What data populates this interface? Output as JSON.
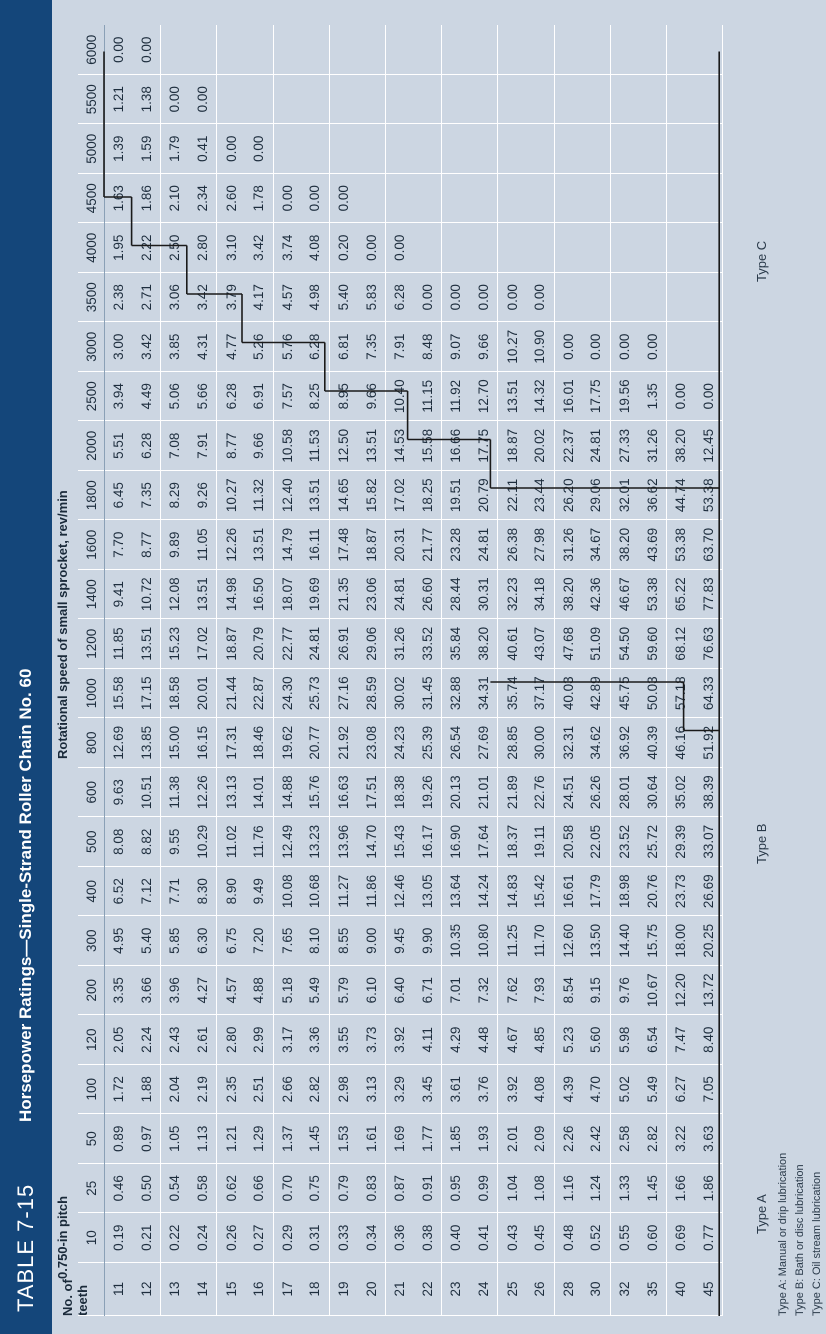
{
  "table": {
    "number": "TABLE 7-15",
    "title": "Horsepower Ratings—Single-Strand Roller Chain No. 60",
    "pitch_label": "0.750-in pitch",
    "teeth_header": [
      "No. of",
      "teeth"
    ],
    "speed_header": "Rotational speed of small sprocket, rev/min",
    "speeds": [
      "10",
      "25",
      "50",
      "100",
      "120",
      "200",
      "300",
      "400",
      "500",
      "600",
      "800",
      "1000",
      "1200",
      "1400",
      "1600",
      "1800",
      "2000",
      "2500",
      "3000",
      "3500",
      "4000",
      "4500",
      "5000",
      "5500",
      "6000"
    ],
    "rows": [
      {
        "teeth": "11",
        "v": [
          "0.19",
          "0.46",
          "0.89",
          "1.72",
          "2.05",
          "3.35",
          "4.95",
          "6.52",
          "8.08",
          "9.63",
          "12.69",
          "15.58",
          "11.85",
          "9.41",
          "7.70",
          "6.45",
          "5.51",
          "3.94",
          "3.00",
          "2.38",
          "1.95",
          "1.63",
          "1.39",
          "1.21",
          "0.00"
        ]
      },
      {
        "teeth": "12",
        "v": [
          "0.21",
          "0.50",
          "0.97",
          "1.88",
          "2.24",
          "3.66",
          "5.40",
          "7.12",
          "8.82",
          "10.51",
          "13.85",
          "17.15",
          "13.51",
          "10.72",
          "8.77",
          "7.35",
          "6.28",
          "4.49",
          "3.42",
          "2.71",
          "2.22",
          "1.86",
          "1.59",
          "1.38",
          "0.00"
        ]
      },
      {
        "teeth": "13",
        "v": [
          "0.22",
          "0.54",
          "1.05",
          "2.04",
          "2.43",
          "3.96",
          "5.85",
          "7.71",
          "9.55",
          "11.38",
          "15.00",
          "18.58",
          "15.23",
          "12.08",
          "9.89",
          "8.29",
          "7.08",
          "5.06",
          "3.85",
          "3.06",
          "2.50",
          "2.10",
          "1.79",
          "0.00",
          ""
        ]
      },
      {
        "teeth": "14",
        "v": [
          "0.24",
          "0.58",
          "1.13",
          "2.19",
          "2.61",
          "4.27",
          "6.30",
          "8.30",
          "10.29",
          "12.26",
          "16.15",
          "20.01",
          "17.02",
          "13.51",
          "11.05",
          "9.26",
          "7.91",
          "5.66",
          "4.31",
          "3.42",
          "2.80",
          "2.34",
          "0.41",
          "0.00",
          ""
        ]
      },
      {
        "teeth": "15",
        "v": [
          "0.26",
          "0.62",
          "1.21",
          "2.35",
          "2.80",
          "4.57",
          "6.75",
          "8.90",
          "11.02",
          "13.13",
          "17.31",
          "21.44",
          "18.87",
          "14.98",
          "12.26",
          "10.27",
          "8.77",
          "6.28",
          "4.77",
          "3.79",
          "3.10",
          "2.60",
          "0.00",
          "",
          ""
        ]
      },
      {
        "teeth": "16",
        "v": [
          "0.27",
          "0.66",
          "1.29",
          "2.51",
          "2.99",
          "4.88",
          "7.20",
          "9.49",
          "11.76",
          "14.01",
          "18.46",
          "22.87",
          "20.79",
          "16.50",
          "13.51",
          "11.32",
          "9.66",
          "6.91",
          "5.26",
          "4.17",
          "3.42",
          "1.78",
          "0.00",
          "",
          ""
        ]
      },
      {
        "teeth": "17",
        "v": [
          "0.29",
          "0.70",
          "1.37",
          "2.66",
          "3.17",
          "5.18",
          "7.65",
          "10.08",
          "12.49",
          "14.88",
          "19.62",
          "24.30",
          "22.77",
          "18.07",
          "14.79",
          "12.40",
          "10.58",
          "7.57",
          "5.76",
          "4.57",
          "3.74",
          "0.00",
          "",
          "",
          ""
        ]
      },
      {
        "teeth": "18",
        "v": [
          "0.31",
          "0.75",
          "1.45",
          "2.82",
          "3.36",
          "5.49",
          "8.10",
          "10.68",
          "13.23",
          "15.76",
          "20.77",
          "25.73",
          "24.81",
          "19.69",
          "16.11",
          "13.51",
          "11.53",
          "8.25",
          "6.28",
          "4.98",
          "4.08",
          "0.00",
          "",
          "",
          ""
        ]
      },
      {
        "teeth": "19",
        "v": [
          "0.33",
          "0.79",
          "1.53",
          "2.98",
          "3.55",
          "5.79",
          "8.55",
          "11.27",
          "13.96",
          "16.63",
          "21.92",
          "27.16",
          "26.91",
          "21.35",
          "17.48",
          "14.65",
          "12.50",
          "8.95",
          "6.81",
          "5.40",
          "0.20",
          "0.00",
          "",
          "",
          ""
        ]
      },
      {
        "teeth": "20",
        "v": [
          "0.34",
          "0.83",
          "1.61",
          "3.13",
          "3.73",
          "6.10",
          "9.00",
          "11.86",
          "14.70",
          "17.51",
          "23.08",
          "28.59",
          "29.06",
          "23.06",
          "18.87",
          "15.82",
          "13.51",
          "9.66",
          "7.35",
          "5.83",
          "0.00",
          "",
          "",
          "",
          ""
        ]
      },
      {
        "teeth": "21",
        "v": [
          "0.36",
          "0.87",
          "1.69",
          "3.29",
          "3.92",
          "6.40",
          "9.45",
          "12.46",
          "15.43",
          "18.38",
          "24.23",
          "30.02",
          "31.26",
          "24.81",
          "20.31",
          "17.02",
          "14.53",
          "10.40",
          "7.91",
          "6.28",
          "0.00",
          "",
          "",
          "",
          ""
        ]
      },
      {
        "teeth": "22",
        "v": [
          "0.38",
          "0.91",
          "1.77",
          "3.45",
          "4.11",
          "6.71",
          "9.90",
          "13.05",
          "16.17",
          "19.26",
          "25.39",
          "31.45",
          "33.52",
          "26.60",
          "21.77",
          "18.25",
          "15.58",
          "11.15",
          "8.48",
          "0.00",
          "",
          "",
          "",
          "",
          ""
        ]
      },
      {
        "teeth": "23",
        "v": [
          "0.40",
          "0.95",
          "1.85",
          "3.61",
          "4.29",
          "7.01",
          "10.35",
          "13.64",
          "16.90",
          "20.13",
          "26.54",
          "32.88",
          "35.84",
          "28.44",
          "23.28",
          "19.51",
          "16.66",
          "11.92",
          "9.07",
          "0.00",
          "",
          "",
          "",
          "",
          ""
        ]
      },
      {
        "teeth": "24",
        "v": [
          "0.41",
          "0.99",
          "1.93",
          "3.76",
          "4.48",
          "7.32",
          "10.80",
          "14.24",
          "17.64",
          "21.01",
          "27.69",
          "34.31",
          "38.20",
          "30.31",
          "24.81",
          "20.79",
          "17.75",
          "12.70",
          "9.66",
          "0.00",
          "",
          "",
          "",
          "",
          ""
        ]
      },
      {
        "teeth": "25",
        "v": [
          "0.43",
          "1.04",
          "2.01",
          "3.92",
          "4.67",
          "7.62",
          "11.25",
          "14.83",
          "18.37",
          "21.89",
          "28.85",
          "35.74",
          "40.61",
          "32.23",
          "26.38",
          "22.11",
          "18.87",
          "13.51",
          "10.27",
          "0.00",
          "",
          "",
          "",
          "",
          ""
        ]
      },
      {
        "teeth": "26",
        "v": [
          "0.45",
          "1.08",
          "2.09",
          "4.08",
          "4.85",
          "7.93",
          "11.70",
          "15.42",
          "19.11",
          "22.76",
          "30.00",
          "37.17",
          "43.07",
          "34.18",
          "27.98",
          "23.44",
          "20.02",
          "14.32",
          "10.90",
          "0.00",
          "",
          "",
          "",
          "",
          ""
        ]
      },
      {
        "teeth": "28",
        "v": [
          "0.48",
          "1.16",
          "2.26",
          "4.39",
          "5.23",
          "8.54",
          "12.60",
          "16.61",
          "20.58",
          "24.51",
          "32.31",
          "40.03",
          "47.68",
          "38.20",
          "31.26",
          "26.20",
          "22.37",
          "16.01",
          "0.00",
          "",
          "",
          "",
          "",
          "",
          ""
        ]
      },
      {
        "teeth": "30",
        "v": [
          "0.52",
          "1.24",
          "2.42",
          "4.70",
          "5.60",
          "9.15",
          "13.50",
          "17.79",
          "22.05",
          "26.26",
          "34.62",
          "42.89",
          "51.09",
          "42.36",
          "34.67",
          "29.06",
          "24.81",
          "17.75",
          "0.00",
          "",
          "",
          "",
          "",
          "",
          ""
        ]
      },
      {
        "teeth": "32",
        "v": [
          "0.55",
          "1.33",
          "2.58",
          "5.02",
          "5.98",
          "9.76",
          "14.40",
          "18.98",
          "23.52",
          "28.01",
          "36.92",
          "45.75",
          "54.50",
          "46.67",
          "38.20",
          "32.01",
          "27.33",
          "19.56",
          "0.00",
          "",
          "",
          "",
          "",
          "",
          ""
        ]
      },
      {
        "teeth": "35",
        "v": [
          "0.60",
          "1.45",
          "2.82",
          "5.49",
          "6.54",
          "10.67",
          "15.75",
          "20.76",
          "25.72",
          "30.64",
          "40.39",
          "50.03",
          "59.60",
          "53.38",
          "43.69",
          "36.62",
          "31.26",
          "1.35",
          "0.00",
          "",
          "",
          "",
          "",
          "",
          ""
        ]
      },
      {
        "teeth": "40",
        "v": [
          "0.69",
          "1.66",
          "3.22",
          "6.27",
          "7.47",
          "12.20",
          "18.00",
          "23.73",
          "29.39",
          "35.02",
          "46.16",
          "57.18",
          "68.12",
          "65.22",
          "53.38",
          "44.74",
          "38.20",
          "0.00",
          "",
          "",
          "",
          "",
          "",
          "",
          ""
        ]
      },
      {
        "teeth": "45",
        "v": [
          "0.77",
          "1.86",
          "3.63",
          "7.05",
          "8.40",
          "13.72",
          "20.25",
          "26.69",
          "33.07",
          "38.39",
          "51.92",
          "64.33",
          "76.63",
          "77.83",
          "63.70",
          "53.38",
          "12.45",
          "0.00",
          "",
          "",
          "",
          "",
          "",
          "",
          ""
        ]
      }
    ],
    "type_labels": [
      "Type A",
      "Type B",
      "Type C"
    ],
    "footnotes": [
      "Type A: Manual or drip lubrication",
      "Type B: Bath or disc lubrication",
      "Type C: Oil stream lubrication"
    ]
  },
  "colors": {
    "banner": "#14467a",
    "background": "#ccd6e2",
    "stair_line": "#1a1a1a"
  }
}
